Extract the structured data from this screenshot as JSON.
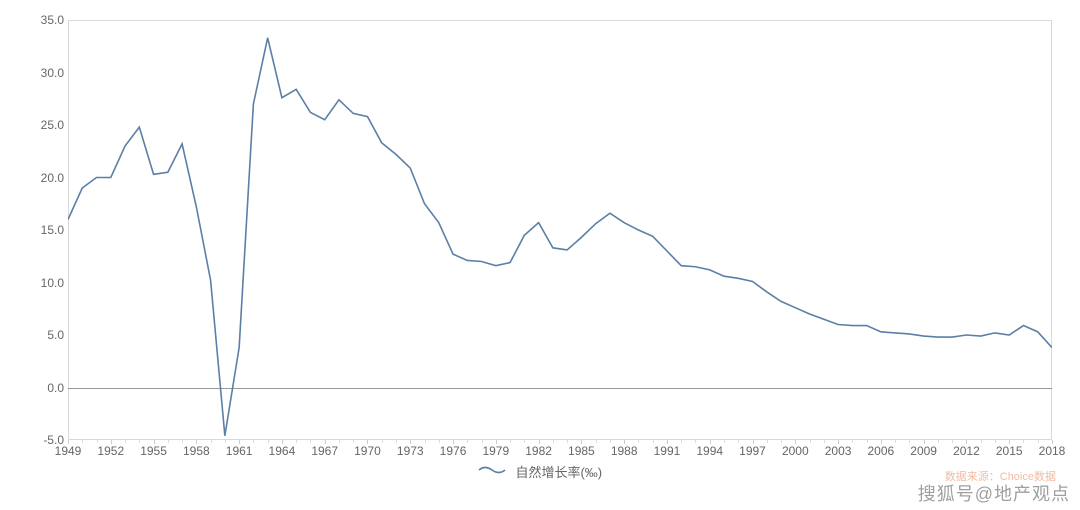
{
  "chart": {
    "type": "line",
    "background_color": "#ffffff",
    "border_color": "#d8d8d8",
    "line_color": "#5b7fa6",
    "line_width": 1.6,
    "zero_line_color": "#999999",
    "ylim": [
      -5.0,
      35.0
    ],
    "ytick_step": 5.0,
    "y_ticks": [
      "-5.0",
      "0.0",
      "5.0",
      "10.0",
      "15.0",
      "20.0",
      "25.0",
      "30.0",
      "35.0"
    ],
    "xlim": [
      1949,
      2018
    ],
    "x_major_tick_step": 3,
    "x_minor_tick_step": 1,
    "x_ticks": [
      "1949",
      "1952",
      "1955",
      "1958",
      "1961",
      "1964",
      "1967",
      "1970",
      "1973",
      "1976",
      "1979",
      "1982",
      "1985",
      "1988",
      "1991",
      "1994",
      "1997",
      "2000",
      "2003",
      "2006",
      "2009",
      "2012",
      "2015",
      "2018"
    ],
    "label_color": "#666666",
    "label_fontsize": 12,
    "legend_label": "自然增长率(‰)",
    "legend_fontsize": 13,
    "years": [
      1949,
      1950,
      1951,
      1952,
      1953,
      1954,
      1955,
      1956,
      1957,
      1958,
      1959,
      1960,
      1961,
      1962,
      1963,
      1964,
      1965,
      1966,
      1967,
      1968,
      1969,
      1970,
      1971,
      1972,
      1973,
      1974,
      1975,
      1976,
      1977,
      1978,
      1979,
      1980,
      1981,
      1982,
      1983,
      1984,
      1985,
      1986,
      1987,
      1988,
      1989,
      1990,
      1991,
      1992,
      1993,
      1994,
      1995,
      1996,
      1997,
      1998,
      1999,
      2000,
      2001,
      2002,
      2003,
      2004,
      2005,
      2006,
      2007,
      2008,
      2009,
      2010,
      2011,
      2012,
      2013,
      2014,
      2015,
      2016,
      2017,
      2018
    ],
    "values": [
      16.0,
      19.0,
      20.0,
      20.0,
      23.0,
      24.8,
      20.3,
      20.5,
      23.2,
      17.2,
      10.2,
      -4.6,
      3.8,
      27.0,
      33.3,
      27.6,
      28.4,
      26.2,
      25.5,
      27.4,
      26.1,
      25.8,
      23.3,
      22.2,
      20.9,
      17.5,
      15.7,
      12.7,
      12.1,
      12.0,
      11.6,
      11.9,
      14.5,
      15.7,
      13.3,
      13.1,
      14.3,
      15.6,
      16.6,
      15.7,
      15.0,
      14.4,
      13.0,
      11.6,
      11.5,
      11.2,
      10.6,
      10.4,
      10.1,
      9.1,
      8.2,
      7.6,
      7.0,
      6.5,
      6.0,
      5.9,
      5.9,
      5.3,
      5.2,
      5.1,
      4.9,
      4.8,
      4.8,
      5.0,
      4.9,
      5.2,
      5.0,
      5.9,
      5.3,
      3.8
    ]
  },
  "source_note": "数据来源：Choice数据",
  "watermark": "搜狐号@地产观点"
}
